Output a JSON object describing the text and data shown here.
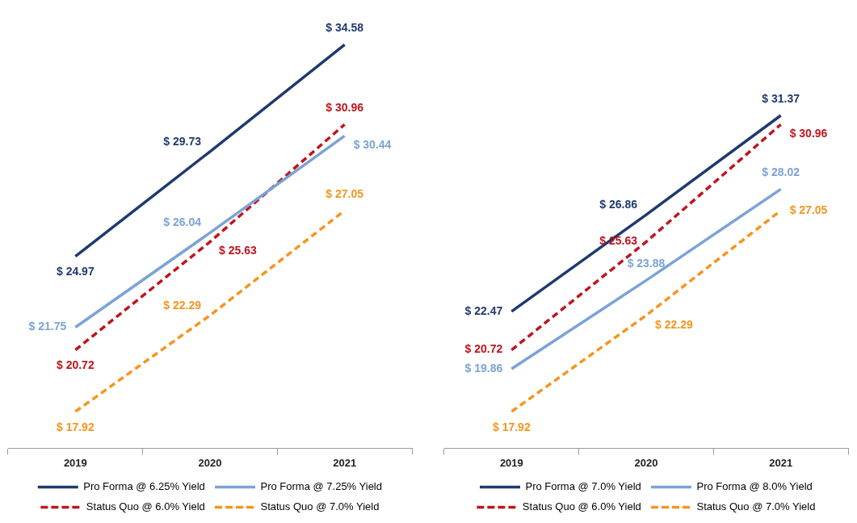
{
  "chart_data": [
    {
      "type": "line",
      "categories": [
        "2019",
        "2020",
        "2021"
      ],
      "grid": false,
      "legend": "bottom",
      "data_labels": true,
      "series": [
        {
          "name": "Pro Forma @ 6.25% Yield",
          "color": "#1f3a6e",
          "line_style": "solid",
          "values": [
            24.97,
            29.73,
            34.58
          ],
          "value_labels": [
            "$ 24.97",
            "$ 29.73",
            "$ 34.58"
          ]
        },
        {
          "name": "Pro Forma @ 7.25% Yield",
          "color": "#7ba3d6",
          "line_style": "solid",
          "values": [
            21.75,
            26.04,
            30.44
          ],
          "value_labels": [
            "$ 21.75",
            "$ 26.04",
            "$ 30.44"
          ]
        },
        {
          "name": "Status Quo @ 6.0% Yield",
          "color": "#c0141c",
          "line_style": "dashed",
          "values": [
            20.72,
            25.63,
            30.96
          ],
          "value_labels": [
            "$ 20.72",
            "$ 25.63",
            "$ 30.96"
          ]
        },
        {
          "name": "Status Quo @ 7.0% Yield",
          "color": "#f7941d",
          "line_style": "dashed",
          "values": [
            17.92,
            22.29,
            27.05
          ],
          "value_labels": [
            "$ 17.92",
            "$ 22.29",
            "$ 27.05"
          ]
        }
      ]
    },
    {
      "type": "line",
      "categories": [
        "2019",
        "2020",
        "2021"
      ],
      "grid": false,
      "legend": "bottom",
      "data_labels": true,
      "series": [
        {
          "name": "Pro Forma @ 7.0% Yield",
          "color": "#1f3a6e",
          "line_style": "solid",
          "values": [
            22.47,
            26.86,
            31.37
          ],
          "value_labels": [
            "$ 22.47",
            "$ 26.86",
            "$ 31.37"
          ]
        },
        {
          "name": "Pro Forma @ 8.0% Yield",
          "color": "#7ba3d6",
          "line_style": "solid",
          "values": [
            19.86,
            23.88,
            28.02
          ],
          "value_labels": [
            "$ 19.86",
            "$ 23.88",
            "$ 28.02"
          ]
        },
        {
          "name": "Status Quo @ 6.0% Yield",
          "color": "#c0141c",
          "line_style": "dashed",
          "values": [
            20.72,
            25.63,
            30.96
          ],
          "value_labels": [
            "$ 20.72",
            "$ 25.63",
            "$ 30.96"
          ]
        },
        {
          "name": "Status Quo @ 7.0% Yield",
          "color": "#f7941d",
          "line_style": "dashed",
          "values": [
            17.92,
            22.29,
            27.05
          ],
          "value_labels": [
            "$ 17.92",
            "$ 22.29",
            "$ 27.05"
          ]
        }
      ]
    }
  ]
}
